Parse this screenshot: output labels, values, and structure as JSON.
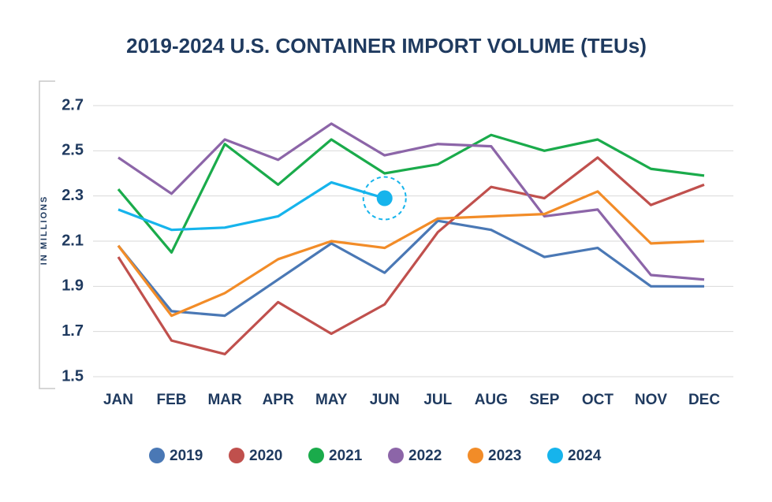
{
  "chart_data": {
    "type": "line",
    "title": "2019-2024 U.S. CONTAINER IMPORT VOLUME (TEUs)",
    "y_label": "IN MILLIONS",
    "categories": [
      "JAN",
      "FEB",
      "MAR",
      "APR",
      "MAY",
      "JUN",
      "JUL",
      "AUG",
      "SEP",
      "OCT",
      "NOV",
      "DEC"
    ],
    "series": [
      {
        "name": "2019",
        "color": "#4a78b5",
        "values": [
          2.08,
          1.79,
          1.77,
          1.93,
          2.09,
          1.96,
          2.19,
          2.15,
          2.03,
          2.07,
          1.9,
          1.9
        ]
      },
      {
        "name": "2020",
        "color": "#c0504d",
        "values": [
          2.03,
          1.66,
          1.6,
          1.83,
          1.69,
          1.82,
          2.14,
          2.34,
          2.29,
          2.47,
          2.26,
          2.35
        ]
      },
      {
        "name": "2021",
        "color": "#1aab4b",
        "values": [
          2.33,
          2.05,
          2.53,
          2.35,
          2.55,
          2.4,
          2.44,
          2.57,
          2.5,
          2.55,
          2.42,
          2.39
        ]
      },
      {
        "name": "2022",
        "color": "#8c65a8",
        "values": [
          2.47,
          2.31,
          2.55,
          2.46,
          2.62,
          2.48,
          2.53,
          2.52,
          2.21,
          2.24,
          1.95,
          1.93
        ]
      },
      {
        "name": "2023",
        "color": "#f28c28",
        "values": [
          2.08,
          1.77,
          1.87,
          2.02,
          2.1,
          2.07,
          2.2,
          2.21,
          2.22,
          2.32,
          2.09,
          2.1
        ]
      },
      {
        "name": "2024",
        "color": "#16b4ec",
        "values": [
          2.24,
          2.15,
          2.16,
          2.21,
          2.36,
          2.29,
          null,
          null,
          null,
          null,
          null,
          null
        ]
      }
    ],
    "ylim": [
      1.5,
      2.7
    ],
    "yticks": [
      1.5,
      1.7,
      1.9,
      2.1,
      2.3,
      2.5,
      2.7
    ],
    "grid": true,
    "legend": "bottom"
  }
}
